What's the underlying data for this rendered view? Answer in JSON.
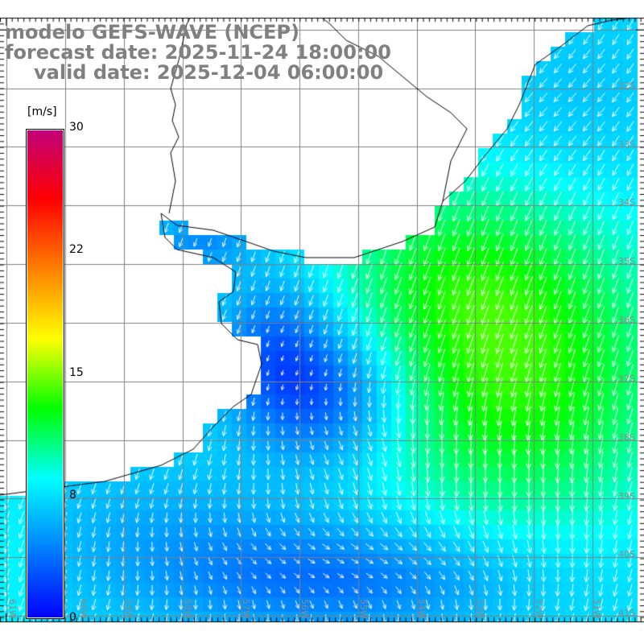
{
  "title": {
    "line1": "modelo GEFS-WAVE (NCEP)",
    "line2": "forecast date: 2025-11-24 18:00:00",
    "line3": "valid date: 2025-12-04 06:00:00"
  },
  "colorbar": {
    "unit": "[m/s]",
    "ticks": [
      "30",
      "22",
      "15",
      "8",
      "0"
    ],
    "tick_values": [
      30,
      22,
      15,
      8,
      0
    ],
    "colors": [
      "#c0007a",
      "#ff0000",
      "#ff8000",
      "#ffff00",
      "#00ff00",
      "#00ffff",
      "#0080ff",
      "#0000ff"
    ]
  },
  "grid": {
    "lat_labels": [
      "32S",
      "33S",
      "34S",
      "35S",
      "36S",
      "37S",
      "38S",
      "39S",
      "40S",
      "41S"
    ],
    "lon_labels": [
      "61W",
      "60W",
      "59W",
      "58W",
      "57W",
      "56W",
      "55W",
      "54W",
      "53W",
      "52W",
      "51W"
    ]
  },
  "colors": {
    "grid": "#808080",
    "coast": "#000000",
    "arrow": "#ffffff",
    "title": "#808080"
  }
}
